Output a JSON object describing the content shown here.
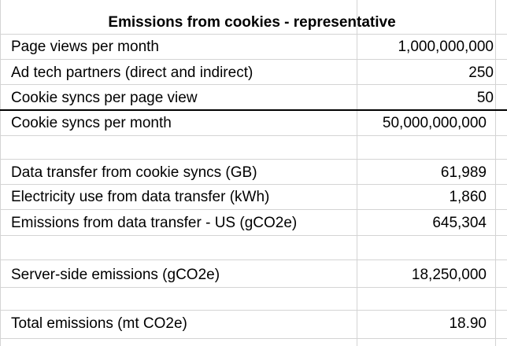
{
  "table": {
    "title": "Emissions from cookies - representative",
    "rows": [
      {
        "label": "Page views per month",
        "value": "1,000,000,000"
      },
      {
        "label": "Ad tech partners (direct and indirect)",
        "value": "250"
      },
      {
        "label": "Cookie syncs per page view",
        "value": "50"
      },
      {
        "label": "Cookie syncs per month",
        "value": "50,000,000,000"
      },
      {
        "label": "",
        "value": ""
      },
      {
        "label": "Data transfer from cookie syncs (GB)",
        "value": "61,989"
      },
      {
        "label": "Electricity use from data transfer (kWh)",
        "value": "1,860"
      },
      {
        "label": "Emissions from data transfer - US (gCO2e)",
        "value": "645,304"
      },
      {
        "label": "",
        "value": ""
      },
      {
        "label": "Server-side emissions (gCO2e)",
        "value": "18,250,000"
      },
      {
        "label": "",
        "value": ""
      },
      {
        "label": "Total emissions (mt CO2e)",
        "value": "18.90"
      }
    ]
  }
}
